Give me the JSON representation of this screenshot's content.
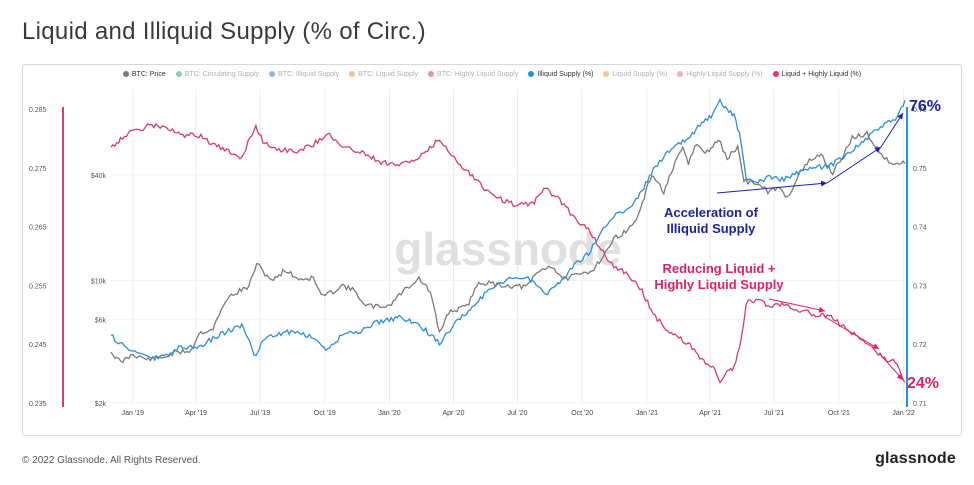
{
  "title": "Liquid and Illiquid Supply (% of Circ.)",
  "footer": {
    "copyright": "© 2022 Glassnode. All Rights Reserved.",
    "brand": "glassnode"
  },
  "watermark": "glassnode",
  "colors": {
    "btc_price": "#7a7a7a",
    "illiquid": "#2b8fd9",
    "liquid": "#d83a7a",
    "annotation_blue": "#1a22a8",
    "annotation_pink": "#e0206a"
  },
  "legend": [
    {
      "label": "BTC: Price",
      "color": "#7a7a7a",
      "active": true
    },
    {
      "label": "BTC: Circulating Supply",
      "color": "#3aa37a",
      "active": false
    },
    {
      "label": "BTC: Illiquid Supply",
      "color": "#3a7ad8",
      "active": false
    },
    {
      "label": "BTC: Liquid Supply",
      "color": "#f08a3a",
      "active": false
    },
    {
      "label": "BTC: Highly Liquid Supply",
      "color": "#e0306a",
      "active": false
    },
    {
      "label": "Illiquid Supply (%)",
      "color": "#2b8fd9",
      "active": true
    },
    {
      "label": "Liquid Supply (%)",
      "color": "#f0a030",
      "active": false
    },
    {
      "label": "Highly Liquid Supply (%)",
      "color": "#d86aa0",
      "active": false
    },
    {
      "label": "Liquid + Highly Liquid (%)",
      "color": "#d83a7a",
      "active": true
    }
  ],
  "annotations": {
    "illiquid_value": "76%",
    "liquid_value": "24%",
    "acceleration": [
      "Acceleration of",
      "Illiquid Supply"
    ],
    "reducing": [
      "Reducing Liquid +",
      "Highly Liquid Supply"
    ]
  },
  "chart_data": {
    "type": "line",
    "x_ticks": [
      "Jan '19",
      "Apr '19",
      "Jul '19",
      "Oct '19",
      "Jan '20",
      "Apr '20",
      "Jul '20",
      "Oct '20",
      "Jan '21",
      "Apr '21",
      "Jul '21",
      "Oct '21",
      "Jan '22"
    ],
    "xlim": [
      "2018-12-01",
      "2022-01-03"
    ],
    "y_left": {
      "ticks": [
        "0.285",
        "0.275",
        "0.265",
        "0.255",
        "0.245",
        "0.235"
      ],
      "range": [
        0.235,
        0.285
      ]
    },
    "y_price": {
      "ticks": [
        "$40k",
        "$10k",
        "$6k",
        "$2k"
      ],
      "scale": "log"
    },
    "y_right": {
      "ticks": [
        "0.76",
        "0.75",
        "0.74",
        "0.73",
        "0.72",
        "0.71"
      ],
      "range": [
        0.71,
        0.76
      ]
    },
    "series": [
      {
        "name": "BTC: Price",
        "axis": "price",
        "points": [
          [
            "2018-12-01",
            3900
          ],
          [
            "2018-12-15",
            3400
          ],
          [
            "2019-01-01",
            3800
          ],
          [
            "2019-01-20",
            3550
          ],
          [
            "2019-02-10",
            3600
          ],
          [
            "2019-03-01",
            3850
          ],
          [
            "2019-03-25",
            4000
          ],
          [
            "2019-04-05",
            5000
          ],
          [
            "2019-04-25",
            5300
          ],
          [
            "2019-05-15",
            7900
          ],
          [
            "2019-05-30",
            8600
          ],
          [
            "2019-06-15",
            9200
          ],
          [
            "2019-06-26",
            12500
          ],
          [
            "2019-07-05",
            11200
          ],
          [
            "2019-07-20",
            10000
          ],
          [
            "2019-08-05",
            11500
          ],
          [
            "2019-08-25",
            10200
          ],
          [
            "2019-09-15",
            10300
          ],
          [
            "2019-09-26",
            8200
          ],
          [
            "2019-10-10",
            8500
          ],
          [
            "2019-10-26",
            9400
          ],
          [
            "2019-11-15",
            8600
          ],
          [
            "2019-11-25",
            7200
          ],
          [
            "2019-12-15",
            7100
          ],
          [
            "2020-01-01",
            7200
          ],
          [
            "2020-01-20",
            8700
          ],
          [
            "2020-02-12",
            10300
          ],
          [
            "2020-02-28",
            8600
          ],
          [
            "2020-03-12",
            5000
          ],
          [
            "2020-03-25",
            6600
          ],
          [
            "2020-04-20",
            7100
          ],
          [
            "2020-05-07",
            9800
          ],
          [
            "2020-05-30",
            9500
          ],
          [
            "2020-06-20",
            9300
          ],
          [
            "2020-07-15",
            9200
          ],
          [
            "2020-07-28",
            11000
          ],
          [
            "2020-08-17",
            12200
          ],
          [
            "2020-09-05",
            10200
          ],
          [
            "2020-09-25",
            10700
          ],
          [
            "2020-10-15",
            11400
          ],
          [
            "2020-10-28",
            13300
          ],
          [
            "2020-11-18",
            17800
          ],
          [
            "2020-12-05",
            19200
          ],
          [
            "2020-12-20",
            23500
          ],
          [
            "2021-01-08",
            40500
          ],
          [
            "2021-01-25",
            32000
          ],
          [
            "2021-02-10",
            46000
          ],
          [
            "2021-02-21",
            57000
          ],
          [
            "2021-03-01",
            47000
          ],
          [
            "2021-03-13",
            60500
          ],
          [
            "2021-03-25",
            52500
          ],
          [
            "2021-04-13",
            63500
          ],
          [
            "2021-04-25",
            49500
          ],
          [
            "2021-05-10",
            58000
          ],
          [
            "2021-05-19",
            37000
          ],
          [
            "2021-06-05",
            36000
          ],
          [
            "2021-06-22",
            32000
          ],
          [
            "2021-07-05",
            34000
          ],
          [
            "2021-07-20",
            29800
          ],
          [
            "2021-08-05",
            40000
          ],
          [
            "2021-08-20",
            48000
          ],
          [
            "2021-09-06",
            52000
          ],
          [
            "2021-09-22",
            41000
          ],
          [
            "2021-10-05",
            50000
          ],
          [
            "2021-10-20",
            65000
          ],
          [
            "2021-11-10",
            68500
          ],
          [
            "2021-11-25",
            57000
          ],
          [
            "2021-12-05",
            49000
          ],
          [
            "2021-12-20",
            47000
          ],
          [
            "2022-01-03",
            46500
          ]
        ]
      },
      {
        "name": "Illiquid Supply (%)",
        "axis": "right",
        "points": [
          [
            "2018-12-01",
            0.7215
          ],
          [
            "2018-12-20",
            0.7195
          ],
          [
            "2019-01-10",
            0.7185
          ],
          [
            "2019-01-25",
            0.7178
          ],
          [
            "2019-02-15",
            0.718
          ],
          [
            "2019-03-10",
            0.7195
          ],
          [
            "2019-04-05",
            0.7195
          ],
          [
            "2019-04-25",
            0.721
          ],
          [
            "2019-05-20",
            0.7225
          ],
          [
            "2019-06-05",
            0.7232
          ],
          [
            "2019-06-25",
            0.7178
          ],
          [
            "2019-07-05",
            0.7205
          ],
          [
            "2019-07-25",
            0.7218
          ],
          [
            "2019-08-20",
            0.7222
          ],
          [
            "2019-09-15",
            0.721
          ],
          [
            "2019-10-05",
            0.719
          ],
          [
            "2019-10-25",
            0.7215
          ],
          [
            "2019-11-20",
            0.7222
          ],
          [
            "2019-12-20",
            0.724
          ],
          [
            "2020-01-15",
            0.7245
          ],
          [
            "2020-02-10",
            0.7235
          ],
          [
            "2020-03-01",
            0.7215
          ],
          [
            "2020-03-12",
            0.72
          ],
          [
            "2020-03-30",
            0.723
          ],
          [
            "2020-04-25",
            0.726
          ],
          [
            "2020-05-15",
            0.7285
          ],
          [
            "2020-06-10",
            0.7305
          ],
          [
            "2020-07-01",
            0.7315
          ],
          [
            "2020-07-25",
            0.7308
          ],
          [
            "2020-08-10",
            0.7285
          ],
          [
            "2020-08-30",
            0.7305
          ],
          [
            "2020-09-20",
            0.7335
          ],
          [
            "2020-10-10",
            0.7355
          ],
          [
            "2020-10-28",
            0.739
          ],
          [
            "2020-11-15",
            0.7418
          ],
          [
            "2020-12-05",
            0.743
          ],
          [
            "2020-12-25",
            0.746
          ],
          [
            "2021-01-10",
            0.7498
          ],
          [
            "2021-01-25",
            0.752
          ],
          [
            "2021-02-10",
            0.7535
          ],
          [
            "2021-03-01",
            0.755
          ],
          [
            "2021-03-20",
            0.7575
          ],
          [
            "2021-04-05",
            0.759
          ],
          [
            "2021-04-15",
            0.7612
          ],
          [
            "2021-04-25",
            0.7598
          ],
          [
            "2021-05-05",
            0.759
          ],
          [
            "2021-05-15",
            0.7545
          ],
          [
            "2021-05-22",
            0.748
          ],
          [
            "2021-06-05",
            0.7475
          ],
          [
            "2021-06-25",
            0.7485
          ],
          [
            "2021-07-15",
            0.748
          ],
          [
            "2021-07-30",
            0.749
          ],
          [
            "2021-08-15",
            0.7495
          ],
          [
            "2021-09-01",
            0.75
          ],
          [
            "2021-09-20",
            0.7505
          ],
          [
            "2021-10-05",
            0.7518
          ],
          [
            "2021-10-20",
            0.753
          ],
          [
            "2021-11-05",
            0.7545
          ],
          [
            "2021-11-20",
            0.756
          ],
          [
            "2021-12-05",
            0.7575
          ],
          [
            "2021-12-20",
            0.758
          ],
          [
            "2022-01-03",
            0.7615
          ]
        ]
      },
      {
        "name": "Liquid + Highly Liquid (%)",
        "axis": "left",
        "points": [
          [
            "2018-12-01",
            0.2785
          ],
          [
            "2018-12-20",
            0.2805
          ],
          [
            "2019-01-10",
            0.2815
          ],
          [
            "2019-01-25",
            0.2822
          ],
          [
            "2019-02-15",
            0.282
          ],
          [
            "2019-03-10",
            0.2805
          ],
          [
            "2019-04-05",
            0.2805
          ],
          [
            "2019-04-25",
            0.279
          ],
          [
            "2019-05-20",
            0.2775
          ],
          [
            "2019-06-05",
            0.2768
          ],
          [
            "2019-06-25",
            0.2822
          ],
          [
            "2019-07-05",
            0.2795
          ],
          [
            "2019-07-25",
            0.2782
          ],
          [
            "2019-08-20",
            0.2778
          ],
          [
            "2019-09-15",
            0.279
          ],
          [
            "2019-10-05",
            0.281
          ],
          [
            "2019-10-25",
            0.2785
          ],
          [
            "2019-11-20",
            0.2778
          ],
          [
            "2019-12-20",
            0.276
          ],
          [
            "2020-01-15",
            0.2755
          ],
          [
            "2020-02-10",
            0.2765
          ],
          [
            "2020-03-01",
            0.2785
          ],
          [
            "2020-03-12",
            0.28
          ],
          [
            "2020-03-30",
            0.277
          ],
          [
            "2020-04-25",
            0.274
          ],
          [
            "2020-05-15",
            0.2715
          ],
          [
            "2020-06-10",
            0.2695
          ],
          [
            "2020-07-01",
            0.2685
          ],
          [
            "2020-07-25",
            0.2692
          ],
          [
            "2020-08-10",
            0.2715
          ],
          [
            "2020-08-30",
            0.2695
          ],
          [
            "2020-09-20",
            0.2665
          ],
          [
            "2020-10-10",
            0.2645
          ],
          [
            "2020-10-28",
            0.261
          ],
          [
            "2020-11-15",
            0.2582
          ],
          [
            "2020-12-05",
            0.257
          ],
          [
            "2020-12-25",
            0.254
          ],
          [
            "2021-01-10",
            0.2502
          ],
          [
            "2021-01-25",
            0.248
          ],
          [
            "2021-02-10",
            0.2465
          ],
          [
            "2021-03-01",
            0.245
          ],
          [
            "2021-03-20",
            0.2425
          ],
          [
            "2021-04-05",
            0.241
          ],
          [
            "2021-04-15",
            0.2388
          ],
          [
            "2021-04-25",
            0.2402
          ],
          [
            "2021-05-05",
            0.241
          ],
          [
            "2021-05-15",
            0.2455
          ],
          [
            "2021-05-22",
            0.252
          ],
          [
            "2021-06-05",
            0.2525
          ],
          [
            "2021-06-25",
            0.2515
          ],
          [
            "2021-07-15",
            0.252
          ],
          [
            "2021-07-30",
            0.251
          ],
          [
            "2021-08-15",
            0.2505
          ],
          [
            "2021-09-01",
            0.25
          ],
          [
            "2021-09-20",
            0.2495
          ],
          [
            "2021-10-05",
            0.2482
          ],
          [
            "2021-10-20",
            0.247
          ],
          [
            "2021-11-05",
            0.2455
          ],
          [
            "2021-11-20",
            0.244
          ],
          [
            "2021-12-05",
            0.2425
          ],
          [
            "2021-12-20",
            0.242
          ],
          [
            "2022-01-03",
            0.2385
          ]
        ]
      }
    ]
  }
}
